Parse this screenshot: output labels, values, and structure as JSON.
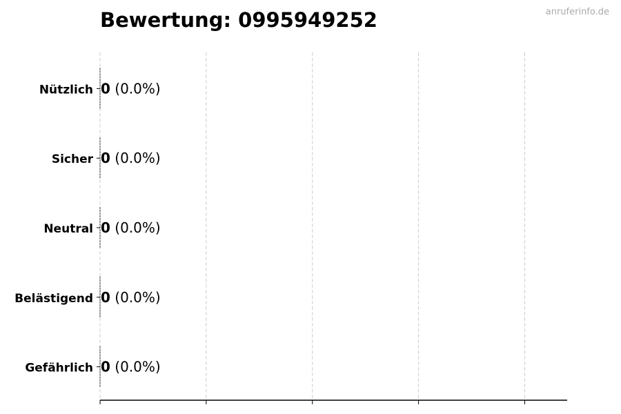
{
  "title": "Bewertung: 0995949252",
  "watermark": "anruferinfo.de",
  "chart_data": {
    "type": "bar",
    "orientation": "horizontal",
    "title": "Bewertung: 0995949252",
    "categories": [
      "Nützlich",
      "Sicher",
      "Neutral",
      "Belästigend",
      "Gefährlich"
    ],
    "values": [
      0,
      0,
      0,
      0,
      0
    ],
    "data_labels": [
      {
        "count": "0",
        "percent": "(0.0%)"
      },
      {
        "count": "0",
        "percent": "(0.0%)"
      },
      {
        "count": "0",
        "percent": "(0.0%)"
      },
      {
        "count": "0",
        "percent": "(0.0%)"
      },
      {
        "count": "0",
        "percent": "(0.0%)"
      }
    ],
    "xlim": [
      0,
      4.4
    ],
    "xticks": [
      0,
      1,
      2,
      3,
      4
    ],
    "xtick_labels_shown": false,
    "grid": "vertical dashed",
    "xlabel": "",
    "ylabel": ""
  }
}
